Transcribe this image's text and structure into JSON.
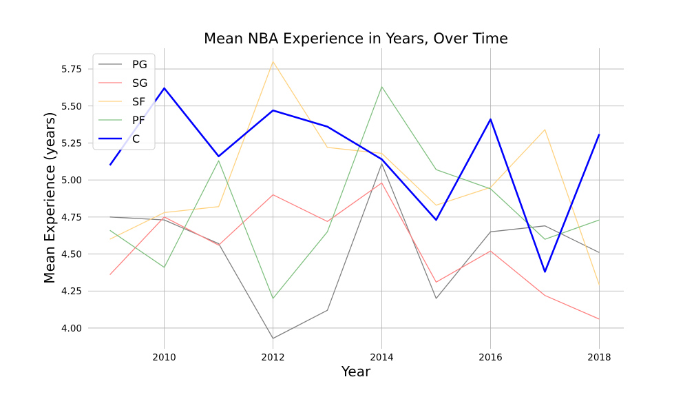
{
  "chart_data": {
    "type": "line",
    "title": "Mean NBA Experience in Years, Over Time",
    "xlabel": "Year",
    "ylabel": "Mean Experience (years)",
    "x": [
      2009,
      2010,
      2011,
      2012,
      2013,
      2014,
      2015,
      2016,
      2017,
      2018
    ],
    "xlim": [
      2008.6,
      2018.45
    ],
    "ylim": [
      3.86,
      5.89
    ],
    "xticks": [
      2010,
      2012,
      2014,
      2016,
      2018
    ],
    "xtick_labels": [
      "2010",
      "2012",
      "2014",
      "2016",
      "2018"
    ],
    "yticks": [
      4.0,
      4.25,
      4.5,
      4.75,
      5.0,
      5.25,
      5.5,
      5.75
    ],
    "ytick_labels": [
      "4.00",
      "4.25",
      "4.50",
      "4.75",
      "5.00",
      "5.25",
      "5.50",
      "5.75"
    ],
    "grid": true,
    "legend_position": "top-left",
    "series": [
      {
        "name": "PG",
        "color": "#808080",
        "values": [
          4.75,
          4.73,
          4.57,
          3.93,
          4.12,
          5.11,
          4.2,
          4.65,
          4.69,
          4.51
        ]
      },
      {
        "name": "SG",
        "color": "#ff8080",
        "values": [
          4.36,
          4.75,
          4.56,
          4.9,
          4.72,
          4.98,
          4.31,
          4.52,
          4.22,
          4.06
        ]
      },
      {
        "name": "SF",
        "color": "#ffd280",
        "values": [
          4.6,
          4.78,
          4.82,
          5.8,
          5.22,
          5.18,
          4.83,
          4.95,
          5.34,
          4.29
        ]
      },
      {
        "name": "PF",
        "color": "#80c080",
        "values": [
          4.66,
          4.41,
          5.13,
          4.2,
          4.65,
          5.63,
          5.07,
          4.94,
          4.6,
          4.73
        ]
      },
      {
        "name": "C",
        "color": "#0000ff",
        "values": [
          5.1,
          5.62,
          5.16,
          5.47,
          5.36,
          5.14,
          4.73,
          5.41,
          4.38,
          5.31
        ]
      }
    ]
  }
}
